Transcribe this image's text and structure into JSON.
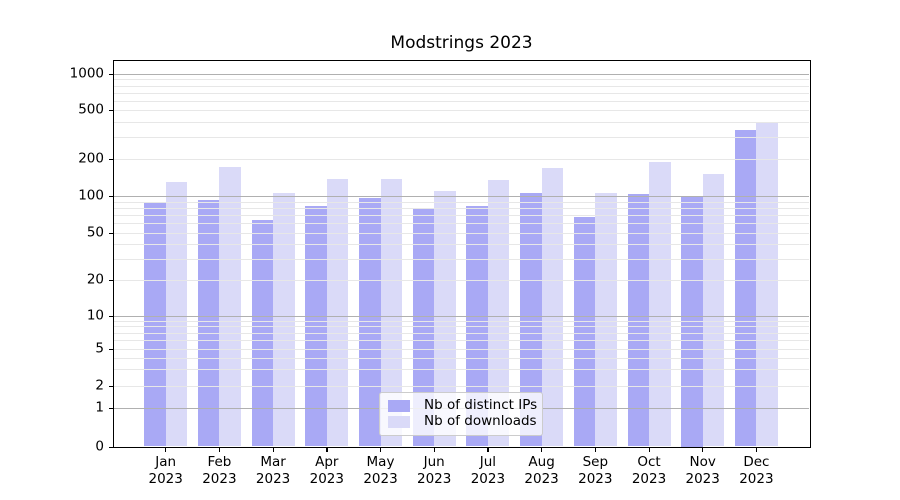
{
  "title": "Modstrings 2023",
  "chart_data": {
    "type": "bar",
    "title": "Modstrings 2023",
    "categories": [
      "Jan",
      "Feb",
      "Mar",
      "Apr",
      "May",
      "Jun",
      "Jul",
      "Aug",
      "Sep",
      "Oct",
      "Nov",
      "Dec"
    ],
    "category_year": "2023",
    "series": [
      {
        "name": "Nb of distinct IPs",
        "color": "#a9a9f5",
        "values": [
          89,
          93,
          64,
          83,
          96,
          79,
          83,
          106,
          67,
          103,
          100,
          346
        ]
      },
      {
        "name": "Nb of downloads",
        "color": "#dadaf8",
        "values": [
          129,
          172,
          105,
          137,
          137,
          110,
          135,
          168,
          105,
          189,
          150,
          400
        ]
      }
    ],
    "yscale": "symlog",
    "yticks": [
      0,
      1,
      2,
      5,
      10,
      20,
      50,
      100,
      200,
      500,
      1000
    ],
    "ylim": [
      0,
      1260
    ],
    "xlabel": "",
    "ylabel": "",
    "grid": "both",
    "grid_above_bars": true,
    "legend_position": "lower center"
  },
  "colors": {
    "grid_major": "#b0b0b0",
    "grid_minor": "#e7e7e7",
    "spine": "#000000",
    "background": "#ffffff"
  }
}
